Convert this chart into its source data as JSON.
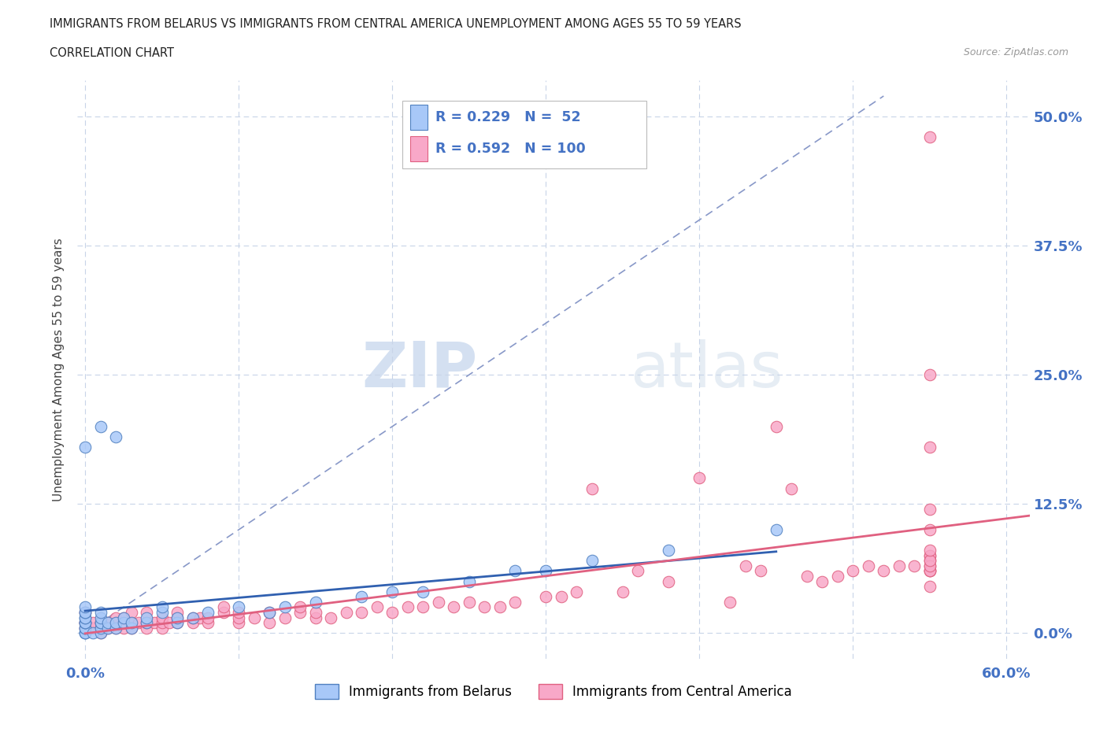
{
  "title_line1": "IMMIGRANTS FROM BELARUS VS IMMIGRANTS FROM CENTRAL AMERICA UNEMPLOYMENT AMONG AGES 55 TO 59 YEARS",
  "title_line2": "CORRELATION CHART",
  "source": "Source: ZipAtlas.com",
  "ylabel": "Unemployment Among Ages 55 to 59 years",
  "y_ticks": [
    0.0,
    0.125,
    0.25,
    0.375,
    0.5
  ],
  "right_tick_labels": [
    "0.0%",
    "12.5%",
    "25.0%",
    "37.5%",
    "50.0%"
  ],
  "xlim": [
    -0.005,
    0.615
  ],
  "ylim": [
    -0.025,
    0.535
  ],
  "legend_labels": [
    "Immigrants from Belarus",
    "Immigrants from Central America"
  ],
  "scatter_color_belarus": "#a8c8f8",
  "scatter_color_central": "#f8a8c8",
  "scatter_edge_belarus": "#5080c0",
  "scatter_edge_central": "#e06080",
  "R_belarus": 0.229,
  "N_belarus": 52,
  "R_central": 0.592,
  "N_central": 100,
  "regression_color_belarus": "#3060b0",
  "regression_color_central": "#e06080",
  "diagonal_color": "#8898c8",
  "watermark_zip": "ZIP",
  "watermark_atlas": "atlas",
  "background_color": "#ffffff",
  "grid_color": "#c8d4e8",
  "legend_box_color": "#aaaaaa",
  "title_color": "#222222",
  "right_label_color": "#4472c4",
  "source_color": "#999999",
  "belarus_x": [
    0.0,
    0.0,
    0.0,
    0.0,
    0.0,
    0.0,
    0.0,
    0.0,
    0.0,
    0.0,
    0.0,
    0.0,
    0.0,
    0.0,
    0.005,
    0.01,
    0.01,
    0.01,
    0.01,
    0.01,
    0.01,
    0.01,
    0.015,
    0.015,
    0.02,
    0.02,
    0.02,
    0.025,
    0.025,
    0.03,
    0.03,
    0.04,
    0.04,
    0.05,
    0.05,
    0.06,
    0.06,
    0.07,
    0.08,
    0.1,
    0.12,
    0.13,
    0.15,
    0.18,
    0.2,
    0.22,
    0.25,
    0.28,
    0.3,
    0.33,
    0.38,
    0.45
  ],
  "belarus_y": [
    0.0,
    0.0,
    0.0,
    0.005,
    0.005,
    0.01,
    0.01,
    0.01,
    0.015,
    0.015,
    0.02,
    0.02,
    0.025,
    0.18,
    0.0,
    0.0,
    0.005,
    0.01,
    0.01,
    0.015,
    0.02,
    0.2,
    0.005,
    0.01,
    0.005,
    0.01,
    0.19,
    0.01,
    0.015,
    0.005,
    0.01,
    0.01,
    0.015,
    0.02,
    0.025,
    0.01,
    0.015,
    0.015,
    0.02,
    0.025,
    0.02,
    0.025,
    0.03,
    0.035,
    0.04,
    0.04,
    0.05,
    0.06,
    0.06,
    0.07,
    0.08,
    0.1
  ],
  "central_x": [
    0.0,
    0.0,
    0.0,
    0.0,
    0.005,
    0.005,
    0.01,
    0.01,
    0.01,
    0.015,
    0.015,
    0.02,
    0.02,
    0.02,
    0.025,
    0.025,
    0.03,
    0.03,
    0.03,
    0.035,
    0.04,
    0.04,
    0.04,
    0.045,
    0.05,
    0.05,
    0.05,
    0.055,
    0.06,
    0.06,
    0.06,
    0.07,
    0.07,
    0.075,
    0.08,
    0.08,
    0.09,
    0.09,
    0.1,
    0.1,
    0.1,
    0.11,
    0.12,
    0.12,
    0.13,
    0.14,
    0.14,
    0.15,
    0.15,
    0.16,
    0.17,
    0.18,
    0.19,
    0.2,
    0.21,
    0.22,
    0.23,
    0.24,
    0.25,
    0.26,
    0.27,
    0.28,
    0.3,
    0.31,
    0.32,
    0.33,
    0.35,
    0.36,
    0.38,
    0.4,
    0.42,
    0.43,
    0.44,
    0.45,
    0.46,
    0.47,
    0.48,
    0.49,
    0.5,
    0.51,
    0.52,
    0.53,
    0.54,
    0.55,
    0.55,
    0.55,
    0.55,
    0.55,
    0.55,
    0.55,
    0.55,
    0.55,
    0.55,
    0.55,
    0.55,
    0.55,
    0.55,
    0.55,
    0.55
  ],
  "central_y": [
    0.005,
    0.01,
    0.01,
    0.02,
    0.005,
    0.01,
    0.0,
    0.005,
    0.01,
    0.005,
    0.01,
    0.005,
    0.01,
    0.015,
    0.005,
    0.015,
    0.005,
    0.01,
    0.02,
    0.01,
    0.005,
    0.01,
    0.02,
    0.01,
    0.005,
    0.01,
    0.015,
    0.01,
    0.01,
    0.015,
    0.02,
    0.01,
    0.015,
    0.015,
    0.01,
    0.015,
    0.02,
    0.025,
    0.01,
    0.015,
    0.02,
    0.015,
    0.01,
    0.02,
    0.015,
    0.02,
    0.025,
    0.015,
    0.02,
    0.015,
    0.02,
    0.02,
    0.025,
    0.02,
    0.025,
    0.025,
    0.03,
    0.025,
    0.03,
    0.025,
    0.025,
    0.03,
    0.035,
    0.035,
    0.04,
    0.14,
    0.04,
    0.06,
    0.05,
    0.15,
    0.03,
    0.065,
    0.06,
    0.2,
    0.14,
    0.055,
    0.05,
    0.055,
    0.06,
    0.065,
    0.06,
    0.065,
    0.065,
    0.06,
    0.065,
    0.06,
    0.075,
    0.07,
    0.25,
    0.06,
    0.075,
    0.065,
    0.1,
    0.48,
    0.07,
    0.18,
    0.045,
    0.12,
    0.08
  ]
}
